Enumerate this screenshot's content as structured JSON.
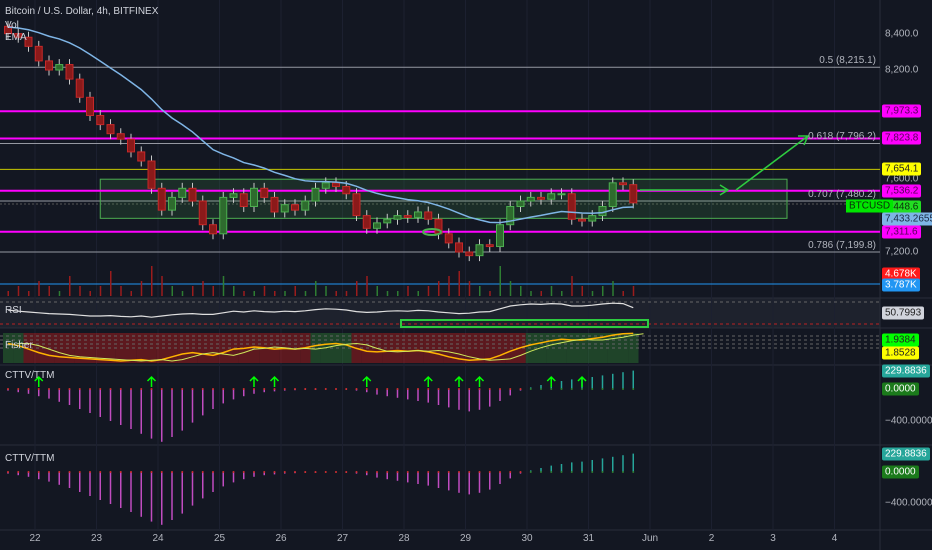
{
  "header": {
    "title": "Bitcoin / U.S. Dollar, 4h, BITFINEX",
    "vol_label": "Vol",
    "ema_label": "EMA"
  },
  "panes": {
    "rsi": "RSI",
    "fisher": "Fisher",
    "cttv1": "CTTV/TTM",
    "cttv2": "CTTV/TTM"
  },
  "colors": {
    "bg": "#131722",
    "up": "#4caf50",
    "down": "#8b1a1a",
    "magenta": "#ff00ff",
    "ema": "#7fb5e6",
    "box": "#2e7d32",
    "arrow": "#2ecc40"
  },
  "chart_data": {
    "type": "candlestick",
    "title": "Bitcoin / U.S. Dollar, 4h, BITFINEX",
    "x_ticks": [
      "22",
      "23",
      "24",
      "25",
      "26",
      "27",
      "28",
      "29",
      "30",
      "31",
      "Jun",
      "2",
      "3",
      "4"
    ],
    "y_ticks": [
      "8,400.0",
      "8,200.0",
      "7,600.0",
      "7,200.0"
    ],
    "y_tick_values": [
      8400,
      8200,
      7600,
      7200
    ],
    "ylim": [
      7080,
      8590
    ],
    "closes": [
      8400,
      8380,
      8330,
      8250,
      8200,
      8230,
      8150,
      8050,
      7950,
      7900,
      7850,
      7820,
      7750,
      7700,
      7550,
      7430,
      7500,
      7550,
      7480,
      7350,
      7300,
      7500,
      7520,
      7450,
      7550,
      7500,
      7420,
      7460,
      7430,
      7480,
      7550,
      7580,
      7560,
      7520,
      7400,
      7330,
      7360,
      7380,
      7400,
      7390,
      7420,
      7380,
      7300,
      7250,
      7200,
      7180,
      7240,
      7230,
      7350,
      7450,
      7480,
      7500,
      7490,
      7520,
      7520,
      7380,
      7370,
      7400,
      7450,
      7580,
      7570,
      7470
    ],
    "first_open": 8440,
    "fib_levels": [
      {
        "label": "0.5 (8,215.1)",
        "value": 8215.1
      },
      {
        "label": "0.618 (7,796.2)",
        "value": 7796.2
      },
      {
        "label": "0.707 (7,480.2)",
        "value": 7480.2
      },
      {
        "label": "0.786 (7,199.8)",
        "value": 7199.8
      }
    ],
    "magenta_lines": [
      7973.3,
      7823.8,
      7536.2,
      7311.6
    ],
    "yellow_line": 7654.1,
    "box": {
      "from_index": 9,
      "to_index": 76,
      "top": 7600,
      "bottom": 7385
    },
    "cttv": [
      -20,
      -40,
      -60,
      -90,
      -120,
      -160,
      -200,
      -250,
      -300,
      -350,
      -400,
      -450,
      -500,
      -560,
      -620,
      -660,
      -600,
      -520,
      -420,
      -330,
      -250,
      -180,
      -130,
      -90,
      -60,
      -40,
      -30,
      -20,
      -15,
      -10,
      -10,
      -5,
      -5,
      -10,
      -20,
      -40,
      -70,
      -90,
      -110,
      -130,
      -150,
      -170,
      -200,
      -230,
      -260,
      -280,
      -260,
      -220,
      -150,
      -80,
      -20,
      20,
      50,
      80,
      100,
      120,
      130,
      150,
      170,
      190,
      210,
      230
    ],
    "cttv_arrow_indices": [
      3,
      14,
      24,
      26,
      35,
      41,
      44,
      46,
      53,
      56
    ],
    "rsi": [
      45,
      42,
      40,
      38,
      36,
      35,
      34,
      32,
      30,
      30,
      31,
      29,
      28,
      30,
      27,
      30,
      33,
      35,
      36,
      34,
      34,
      38,
      42,
      40,
      43,
      41,
      40,
      42,
      41,
      43,
      46,
      48,
      47,
      45,
      41,
      39,
      40,
      42,
      43,
      42,
      44,
      43,
      40,
      38,
      36,
      37,
      40,
      41,
      48,
      55,
      58,
      60,
      59,
      61,
      60,
      55,
      55,
      57,
      60,
      62,
      61,
      50.8
    ],
    "fisher": [
      0.5,
      0.2,
      -0.3,
      -0.8,
      -1.2,
      -1.4,
      -1.5,
      -1.6,
      -1.7,
      -1.8,
      -1.9,
      -2.0,
      -1.9,
      -1.8,
      -2.0,
      -1.8,
      -1.4,
      -1.0,
      -0.8,
      -1.0,
      -1.2,
      -0.8,
      -0.3,
      -0.2,
      0.0,
      -0.1,
      -0.3,
      -0.2,
      -0.3,
      -0.1,
      0.2,
      0.4,
      0.5,
      0.3,
      -0.2,
      -0.6,
      -0.7,
      -0.6,
      -0.5,
      -0.6,
      -0.5,
      -0.7,
      -1.0,
      -1.4,
      -1.7,
      -1.9,
      -1.8,
      -1.7,
      -1.2,
      -0.6,
      -0.1,
      0.3,
      0.6,
      0.9,
      1.1,
      1.0,
      1.0,
      1.2,
      1.4,
      1.7,
      1.9,
      1.94
    ],
    "volume": [
      1,
      2,
      1,
      3,
      2,
      1,
      4,
      2,
      1,
      2,
      5,
      2,
      1,
      3,
      6,
      4,
      2,
      1,
      2,
      3,
      2,
      4,
      2,
      1,
      1,
      2,
      1,
      1,
      2,
      1,
      3,
      2,
      1,
      1,
      3,
      4,
      2,
      1,
      1,
      2,
      1,
      2,
      3,
      4,
      5,
      3,
      2,
      1,
      6,
      3,
      2,
      1,
      1,
      2,
      1,
      4,
      2,
      1,
      2,
      3,
      1,
      2
    ]
  },
  "price_axis": {
    "badges": [
      {
        "text": "7,973.3",
        "value": 7973.3,
        "bg": "#ff00ff",
        "fg": "#5a005a"
      },
      {
        "text": "7,823.8",
        "value": 7823.8,
        "bg": "#ff00ff",
        "fg": "#5a005a"
      },
      {
        "text": "7,654.1",
        "value": 7654.1,
        "bg": "#ffff00",
        "fg": "#222"
      },
      {
        "text": "7,536.2",
        "value": 7536.2,
        "bg": "#ff00ff",
        "fg": "#5a005a"
      },
      {
        "text": "7,448.6",
        "value": 7448.6,
        "bg": "#22dd22",
        "fg": "#0b2b0b"
      },
      {
        "text": "7,433.2655",
        "value": 7380,
        "bg": "#7fb5e6",
        "fg": "#1a2a44"
      },
      {
        "text": "7,311.6",
        "value": 7311.6,
        "bg": "#ff00ff",
        "fg": "#5a005a"
      },
      {
        "text": "4.678K",
        "value": 7080,
        "bg": "#ff1a1a",
        "fg": "#fff"
      },
      {
        "text": "3.787K",
        "value": 7020,
        "bg": "#2196f3",
        "fg": "#fff"
      }
    ],
    "symbol_tag": "BTCUSD",
    "rsi_value": "50.7993",
    "fisher_values": [
      "1.9384",
      "1.8528"
    ],
    "cttv1": {
      "top": "229.8836",
      "zero": "0.0000",
      "low": "−400.0000"
    },
    "cttv2": {
      "top": "229.8836",
      "zero": "0.0000",
      "low": "−400.0000"
    }
  }
}
